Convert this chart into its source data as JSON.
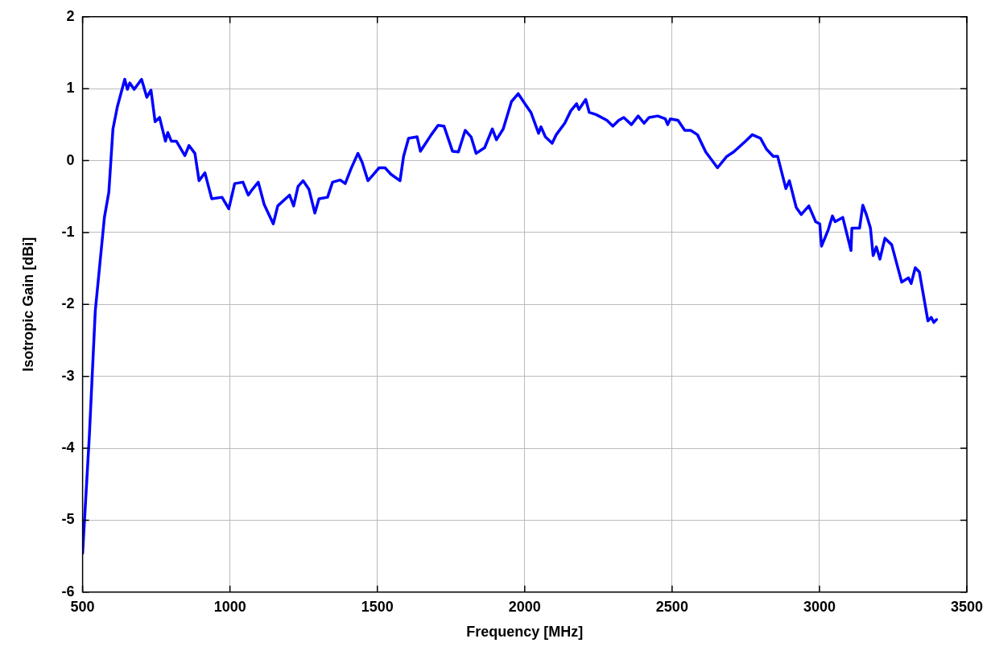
{
  "chart_data": {
    "type": "line",
    "xlabel": "Frequency [MHz]",
    "ylabel": "Isotropic Gain [dBi]",
    "x": [
      500,
      523,
      543,
      574,
      589,
      603,
      618,
      643,
      652,
      660,
      675,
      700,
      718,
      732,
      746,
      761,
      781,
      789,
      801,
      818,
      847,
      861,
      881,
      895,
      915,
      938,
      973,
      996,
      1016,
      1044,
      1062,
      1076,
      1096,
      1116,
      1147,
      1162,
      1202,
      1216,
      1231,
      1248,
      1268,
      1288,
      1302,
      1331,
      1348,
      1374,
      1391,
      1411,
      1434,
      1448,
      1468,
      1483,
      1506,
      1526,
      1546,
      1577,
      1589,
      1606,
      1635,
      1646,
      1683,
      1706,
      1726,
      1755,
      1775,
      1798,
      1818,
      1835,
      1864,
      1890,
      1904,
      1927,
      1955,
      1978,
      2004,
      2021,
      2047,
      2055,
      2070,
      2093,
      2107,
      2136,
      2156,
      2176,
      2184,
      2207,
      2219,
      2242,
      2279,
      2299,
      2319,
      2336,
      2362,
      2385,
      2405,
      2422,
      2451,
      2477,
      2485,
      2494,
      2520,
      2543,
      2563,
      2586,
      2614,
      2654,
      2686,
      2709,
      2749,
      2772,
      2800,
      2820,
      2843,
      2858,
      2886,
      2898,
      2921,
      2938,
      2964,
      2987,
      3001,
      3007,
      3030,
      3044,
      3053,
      3079,
      3107,
      3110,
      3136,
      3147,
      3159,
      3173,
      3182,
      3193,
      3205,
      3222,
      3245,
      3279,
      3302,
      3311,
      3325,
      3339,
      3368,
      3379,
      3388,
      3397
    ],
    "series": [
      {
        "color": "#0000ff",
        "values": [
          -5.46,
          -3.82,
          -2.09,
          -0.79,
          -0.44,
          0.44,
          0.75,
          1.13,
          0.99,
          1.08,
          0.99,
          1.13,
          0.88,
          0.98,
          0.54,
          0.6,
          0.27,
          0.39,
          0.27,
          0.27,
          0.07,
          0.21,
          0.1,
          -0.28,
          -0.17,
          -0.53,
          -0.51,
          -0.67,
          -0.32,
          -0.3,
          -0.48,
          -0.4,
          -0.3,
          -0.61,
          -0.88,
          -0.63,
          -0.48,
          -0.63,
          -0.36,
          -0.28,
          -0.4,
          -0.73,
          -0.53,
          -0.51,
          -0.3,
          -0.27,
          -0.32,
          -0.11,
          0.1,
          -0.02,
          -0.28,
          -0.21,
          -0.1,
          -0.1,
          -0.19,
          -0.28,
          0.06,
          0.31,
          0.33,
          0.13,
          0.36,
          0.49,
          0.48,
          0.13,
          0.12,
          0.42,
          0.33,
          0.1,
          0.18,
          0.44,
          0.29,
          0.44,
          0.82,
          0.93,
          0.77,
          0.67,
          0.38,
          0.47,
          0.33,
          0.24,
          0.36,
          0.52,
          0.69,
          0.79,
          0.71,
          0.85,
          0.67,
          0.64,
          0.56,
          0.48,
          0.56,
          0.6,
          0.5,
          0.62,
          0.52,
          0.6,
          0.62,
          0.58,
          0.5,
          0.58,
          0.56,
          0.42,
          0.42,
          0.36,
          0.12,
          -0.1,
          0.06,
          0.12,
          0.27,
          0.36,
          0.31,
          0.16,
          0.06,
          0.06,
          -0.39,
          -0.28,
          -0.65,
          -0.75,
          -0.63,
          -0.85,
          -0.88,
          -1.19,
          -0.96,
          -0.77,
          -0.85,
          -0.79,
          -1.25,
          -0.94,
          -0.94,
          -0.62,
          -0.75,
          -0.94,
          -1.32,
          -1.2,
          -1.37,
          -1.08,
          -1.17,
          -1.69,
          -1.63,
          -1.71,
          -1.49,
          -1.55,
          -2.23,
          -2.18,
          -2.25,
          -2.21
        ]
      }
    ],
    "xlim": [
      500,
      3500
    ],
    "xticks": [
      500,
      1000,
      1500,
      2000,
      2500,
      3000,
      3500
    ],
    "ylim": [
      -6,
      2
    ],
    "yticks": [
      -6,
      -5,
      -4,
      -3,
      -2,
      -1,
      0,
      1,
      2
    ],
    "grid": true,
    "legend": false,
    "marker": "none",
    "line_style": "solid"
  }
}
